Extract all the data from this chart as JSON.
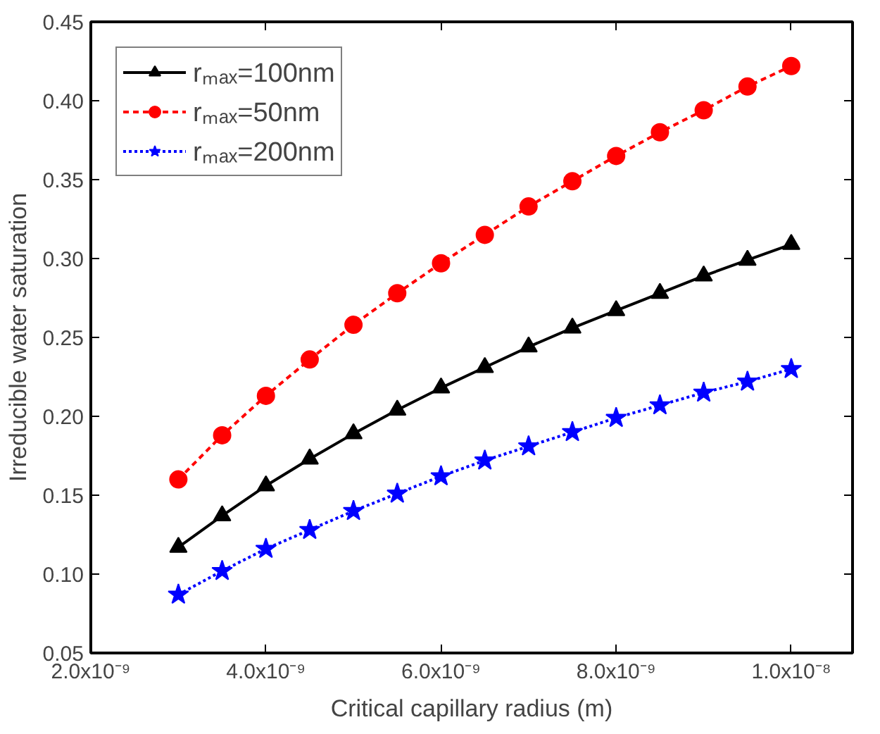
{
  "chart_data": {
    "type": "line",
    "xlabel": "Critical capillary radius (m)",
    "ylabel": "Irreducible water saturation",
    "x": [
      3e-09,
      3.5e-09,
      4e-09,
      4.5e-09,
      5e-09,
      5.5e-09,
      6e-09,
      6.5e-09,
      7e-09,
      7.5e-09,
      8e-09,
      8.5e-09,
      9e-09,
      9.5e-09,
      1e-08
    ],
    "series": [
      {
        "name": "rₘₐₓ=100nm",
        "color": "#000000",
        "marker": "triangle",
        "line_style": "solid",
        "values": [
          0.117,
          0.137,
          0.156,
          0.173,
          0.189,
          0.204,
          0.218,
          0.231,
          0.244,
          0.256,
          0.267,
          0.278,
          0.289,
          0.299,
          0.309
        ]
      },
      {
        "name": "rₘₐₓ=50nm",
        "color": "#ff0000",
        "marker": "circle",
        "line_style": "dashed",
        "values": [
          0.16,
          0.188,
          0.213,
          0.236,
          0.258,
          0.278,
          0.297,
          0.315,
          0.333,
          0.349,
          0.365,
          0.38,
          0.394,
          0.409,
          0.422
        ]
      },
      {
        "name": "rₘₐₓ=200nm",
        "color": "#0000ff",
        "marker": "star",
        "line_style": "dotted",
        "values": [
          0.087,
          0.102,
          0.116,
          0.128,
          0.14,
          0.151,
          0.162,
          0.172,
          0.181,
          0.19,
          0.199,
          0.207,
          0.215,
          0.222,
          0.23
        ]
      }
    ],
    "xlim": [
      2e-09,
      1.07e-08
    ],
    "xticks": [
      {
        "value": 2e-09,
        "label": "2.0x10⁻⁹"
      },
      {
        "value": 4e-09,
        "label": "4.0x10⁻⁹"
      },
      {
        "value": 6e-09,
        "label": "6.0x10⁻⁹"
      },
      {
        "value": 8e-09,
        "label": "8.0x10⁻⁹"
      },
      {
        "value": 1e-08,
        "label": "1.0x10⁻⁸"
      }
    ],
    "ylim": [
      0.05,
      0.45
    ],
    "yticks": [
      {
        "value": 0.05,
        "label": "0.05"
      },
      {
        "value": 0.1,
        "label": "0.10"
      },
      {
        "value": 0.15,
        "label": "0.15"
      },
      {
        "value": 0.2,
        "label": "0.20"
      },
      {
        "value": 0.25,
        "label": "0.25"
      },
      {
        "value": 0.3,
        "label": "0.30"
      },
      {
        "value": 0.35,
        "label": "0.35"
      },
      {
        "value": 0.4,
        "label": "0.40"
      },
      {
        "value": 0.45,
        "label": "0.45"
      }
    ],
    "grid": false,
    "legend": "top left"
  }
}
